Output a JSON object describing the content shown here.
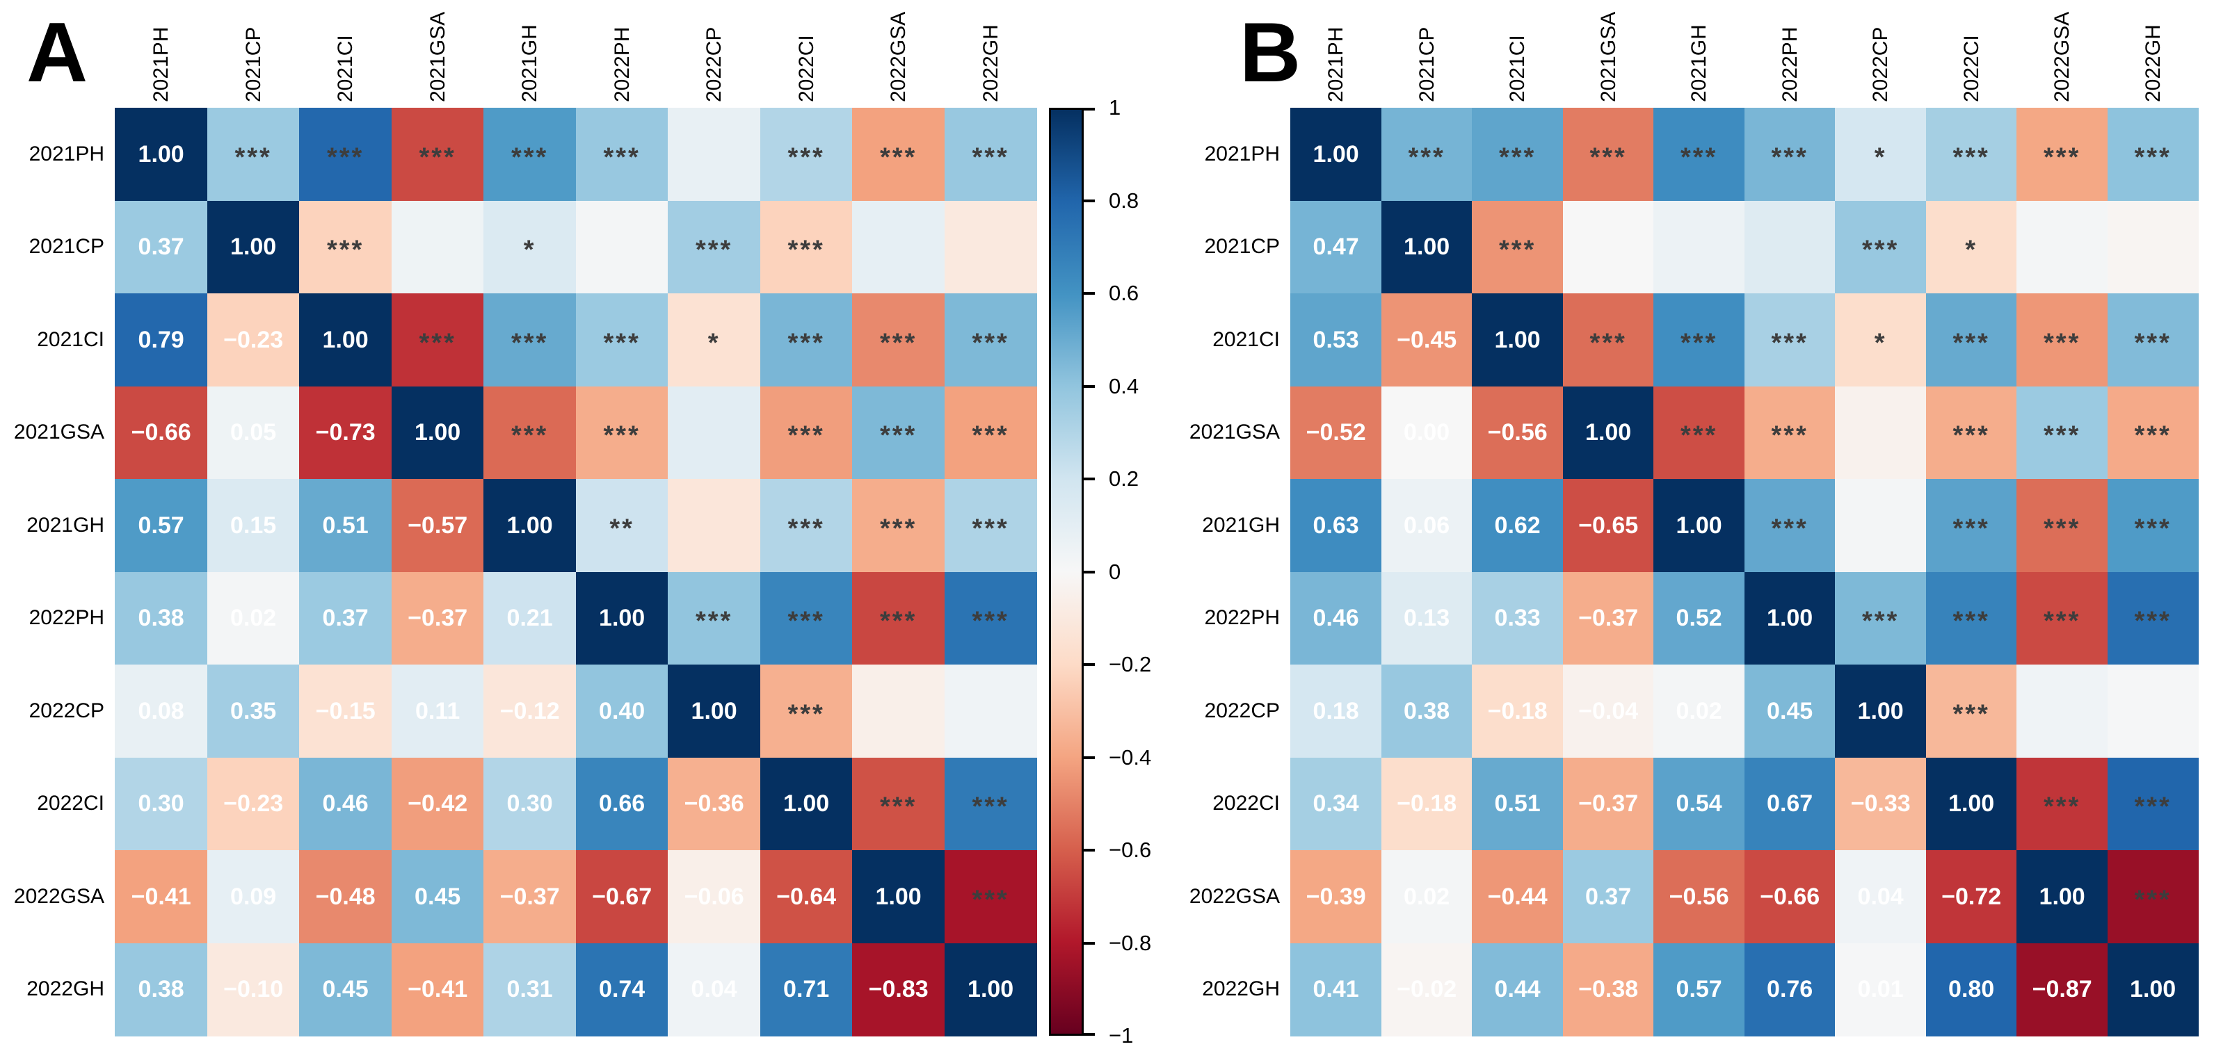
{
  "chart_data": [
    {
      "type": "heatmap",
      "panel_label": "A",
      "categories": [
        "2021PH",
        "2021CP",
        "2021CI",
        "2021GSA",
        "2021GH",
        "2022PH",
        "2022CP",
        "2022CI",
        "2022GSA",
        "2022GH"
      ],
      "value_range": [
        -1,
        1
      ],
      "correlations_lower_triangle": [
        [
          1.0
        ],
        [
          0.37,
          1.0
        ],
        [
          0.79,
          -0.23,
          1.0
        ],
        [
          -0.66,
          0.05,
          -0.73,
          1.0
        ],
        [
          0.57,
          0.15,
          0.51,
          -0.57,
          1.0
        ],
        [
          0.38,
          0.02,
          0.37,
          -0.37,
          0.21,
          1.0
        ],
        [
          0.08,
          0.35,
          -0.15,
          0.11,
          -0.12,
          0.4,
          1.0
        ],
        [
          0.3,
          -0.23,
          0.46,
          -0.42,
          0.3,
          0.66,
          -0.36,
          1.0
        ],
        [
          -0.41,
          0.09,
          -0.48,
          0.45,
          -0.37,
          -0.67,
          -0.06,
          -0.64,
          1.0
        ],
        [
          0.38,
          -0.1,
          0.45,
          -0.41,
          0.31,
          0.74,
          0.04,
          0.71,
          -0.83,
          1.0
        ]
      ],
      "significance_stars_upper_triangle": [
        [
          "***",
          "***",
          "***",
          "***",
          "***",
          "",
          "***",
          "***",
          "***"
        ],
        [
          "***",
          "",
          "*",
          "",
          "***",
          "***",
          "",
          ""
        ],
        [
          "***",
          "***",
          "***",
          "*",
          "***",
          "***",
          "***"
        ],
        [
          "***",
          "***",
          "",
          "***",
          "***",
          "***"
        ],
        [
          "**",
          "",
          "***",
          "***",
          "***"
        ],
        [
          "***",
          "***",
          "***",
          "***"
        ],
        [
          "***",
          "",
          ""
        ],
        [
          "***",
          "***"
        ],
        [
          "***"
        ]
      ]
    },
    {
      "type": "heatmap",
      "panel_label": "B",
      "categories": [
        "2021PH",
        "2021CP",
        "2021CI",
        "2021GSA",
        "2021GH",
        "2022PH",
        "2022CP",
        "2022CI",
        "2022GSA",
        "2022GH"
      ],
      "value_range": [
        -1,
        1
      ],
      "correlations_lower_triangle": [
        [
          1.0
        ],
        [
          0.47,
          1.0
        ],
        [
          0.53,
          -0.45,
          1.0
        ],
        [
          -0.52,
          0.0,
          -0.56,
          1.0
        ],
        [
          0.63,
          0.06,
          0.62,
          -0.65,
          1.0
        ],
        [
          0.46,
          0.13,
          0.33,
          -0.37,
          0.52,
          1.0
        ],
        [
          0.18,
          0.38,
          -0.18,
          -0.04,
          0.02,
          0.45,
          1.0
        ],
        [
          0.34,
          -0.18,
          0.51,
          -0.37,
          0.54,
          0.67,
          -0.33,
          1.0
        ],
        [
          -0.39,
          0.02,
          -0.44,
          0.37,
          -0.56,
          -0.66,
          0.04,
          -0.72,
          1.0
        ],
        [
          0.41,
          -0.02,
          0.44,
          -0.38,
          0.57,
          0.76,
          0.01,
          0.8,
          -0.87,
          1.0
        ]
      ],
      "significance_stars_upper_triangle": [
        [
          "***",
          "***",
          "***",
          "***",
          "***",
          "*",
          "***",
          "***",
          "***"
        ],
        [
          "***",
          "",
          "",
          "",
          "***",
          "*",
          "",
          ""
        ],
        [
          "***",
          "***",
          "***",
          "*",
          "***",
          "***",
          "***"
        ],
        [
          "***",
          "***",
          "",
          "***",
          "***",
          "***"
        ],
        [
          "***",
          "",
          "***",
          "***",
          "***"
        ],
        [
          "***",
          "***",
          "***",
          "***"
        ],
        [
          "***",
          "",
          ""
        ],
        [
          "***",
          "***"
        ],
        [
          "***"
        ]
      ]
    }
  ],
  "colorbar": {
    "max": 1,
    "min": -1,
    "tick_labels": [
      "1",
      "0.8",
      "0.6",
      "0.4",
      "0.2",
      "0",
      "−0.2",
      "−0.4",
      "−0.6",
      "−0.8",
      "−1"
    ],
    "colormap_name": "RdBu",
    "colormap_anchors": [
      "#67001f",
      "#b2182b",
      "#d6604d",
      "#f4a582",
      "#fddbc7",
      "#f7f7f7",
      "#d1e5f0",
      "#92c5de",
      "#4393c3",
      "#2166ac",
      "#053061"
    ]
  }
}
